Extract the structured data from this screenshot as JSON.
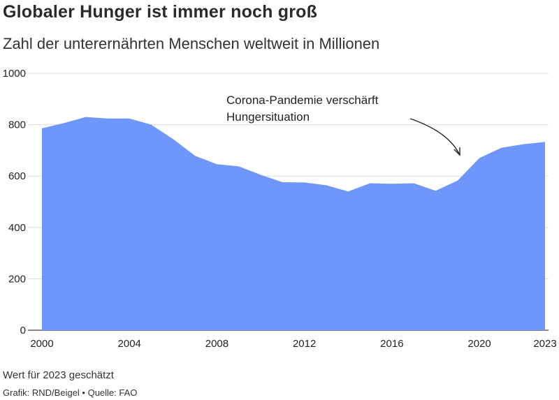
{
  "chart_data": {
    "type": "area",
    "title": "Globaler Hunger ist immer noch groß",
    "subtitle": "Zahl der unterernährten Menschen weltweit in Millionen",
    "xlabel": "",
    "ylabel": "",
    "x": [
      2000,
      2001,
      2002,
      2003,
      2004,
      2005,
      2006,
      2007,
      2008,
      2009,
      2010,
      2011,
      2012,
      2013,
      2014,
      2015,
      2016,
      2017,
      2018,
      2019,
      2020,
      2021,
      2022,
      2023
    ],
    "series": [
      {
        "values": [
          786,
          806,
          830,
          824,
          824,
          800,
          744,
          679,
          646,
          638,
          605,
          576,
          575,
          564,
          540,
          572,
          570,
          572,
          543,
          582,
          670,
          710,
          724,
          733
        ]
      }
    ],
    "ylim": [
      0,
      1000
    ],
    "xlim": [
      2000,
      2023
    ],
    "yticks": [
      "0",
      "200",
      "400",
      "600",
      "800",
      "1000"
    ],
    "xticks": [
      "2000",
      "2004",
      "2008",
      "2012",
      "2016",
      "2020",
      "2023"
    ],
    "grid": true,
    "color": "#6f97fb",
    "annotations": [
      {
        "line1": "Corona-Pandemie verschärft",
        "line2": "Hungersituation",
        "points_to_x": 2019
      }
    ]
  },
  "footer": {
    "note": "Wert für 2023 geschätzt",
    "credit": "Grafik: RND/Beigel • Quelle: FAO"
  }
}
